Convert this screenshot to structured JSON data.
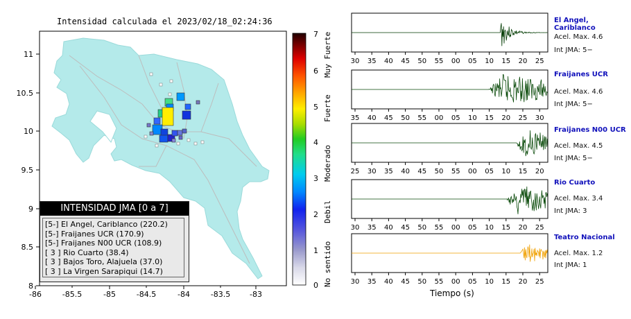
{
  "map": {
    "title": "Intensidad calculada el 2023/02/18_02:24:36",
    "x_ticks": [
      "-86",
      "-85.5",
      "-85",
      "-84.5",
      "-84",
      "-83.5",
      "-83"
    ],
    "y_ticks": [
      "11",
      "10.5",
      "10",
      "9.5",
      "9",
      "8.5",
      "8"
    ],
    "colorbar": {
      "ticks": [
        "0",
        "1",
        "2",
        "3",
        "4",
        "5",
        "6",
        "7"
      ],
      "labels": [
        "No sentido",
        "Debil",
        "Moderado",
        "Fuerte",
        "Muy Fuerte"
      ]
    },
    "legend": {
      "title": "INTENSIDAD JMA [0 a 7]",
      "rows": [
        "[5-]  El Angel, Cariblanco (220.2)",
        "[5-]  Fraijanes UCR (170.9)",
        "[5-]  Fraijanes N00 UCR (108.9)",
        "[ 3 ]  Rio Cuarto (38.4)",
        "[ 3 ]  Bajos Toro, Alajuela (37.0)",
        "[ 3 ]  La Virgen Sarapiqui (14.7)"
      ]
    }
  },
  "traces": [
    {
      "name": "El Angel, Cariblanco",
      "accel": "Acel. Max. 4.6",
      "int": "Int JMA: 5−",
      "color": "#003a00",
      "x_ticks": [
        "30",
        "35",
        "40",
        "45",
        "50",
        "55",
        "00",
        "05",
        "10",
        "15",
        "20",
        "25"
      ]
    },
    {
      "name": "Fraijanes UCR",
      "accel": "Acel. Max. 4.6",
      "int": "Int JMA: 5−",
      "color": "#0a4a0a",
      "x_ticks": [
        "35",
        "40",
        "45",
        "50",
        "55",
        "00",
        "05",
        "10",
        "15",
        "20",
        "25",
        "30"
      ]
    },
    {
      "name": "Fraijanes N00 UCR",
      "accel": "Acel. Max. 4.5",
      "int": "Int JMA: 5−",
      "color": "#0a4a0a",
      "x_ticks": [
        "25",
        "30",
        "35",
        "40",
        "45",
        "50",
        "55",
        "00",
        "05",
        "10",
        "15",
        "20"
      ]
    },
    {
      "name": "Rio Cuarto",
      "accel": "Acel. Max. 3.4",
      "int": "Int JMA: 3",
      "color": "#0a4a0a",
      "x_ticks": [
        "30",
        "35",
        "40",
        "45",
        "50",
        "55",
        "00",
        "05",
        "10",
        "15",
        "20",
        "25"
      ]
    },
    {
      "name": "Teatro Nacional",
      "accel": "Acel. Max. 1.2",
      "int": "Int JMA: 1",
      "color": "#f0a000",
      "x_ticks": [
        "30",
        "35",
        "40",
        "45",
        "50",
        "55",
        "00",
        "05",
        "10",
        "15",
        "20",
        "25"
      ]
    }
  ],
  "time_axis_label": "Tiempo (s)"
}
